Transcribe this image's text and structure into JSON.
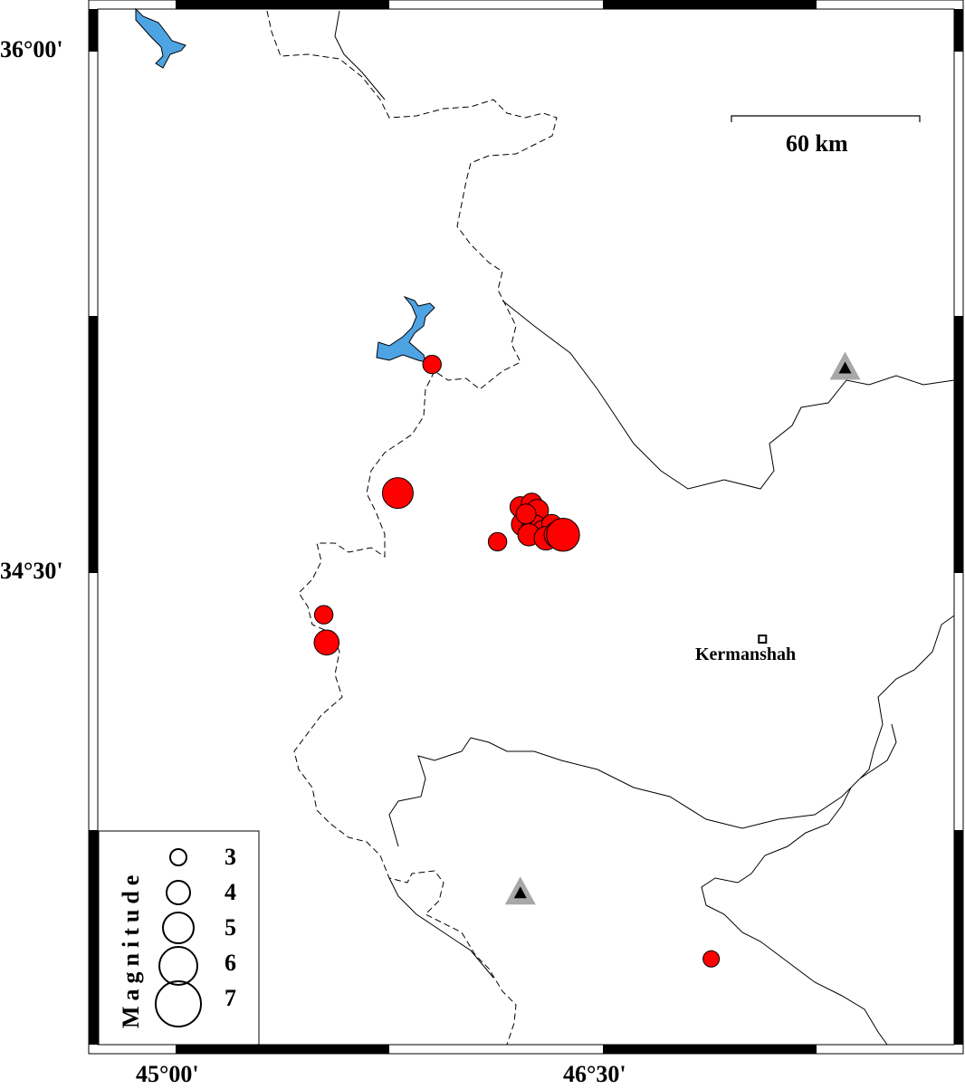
{
  "axes": {
    "lat_labels": [
      {
        "text": "36°00'",
        "lat": 36.0
      },
      {
        "text": "34°30'",
        "lat": 34.5
      }
    ],
    "lon_labels": [
      {
        "text": "45°00'",
        "lon": 45.0
      },
      {
        "text": "46°30'",
        "lon": 46.5
      }
    ]
  },
  "scale_bar": {
    "label": "60 km",
    "length_km": 60
  },
  "legend": {
    "title": "Magnitude",
    "entries": [
      {
        "mag": 3,
        "label": "3"
      },
      {
        "mag": 4,
        "label": "4"
      },
      {
        "mag": 5,
        "label": "5"
      },
      {
        "mag": 6,
        "label": "6"
      },
      {
        "mag": 7,
        "label": "7"
      }
    ]
  },
  "cities": [
    {
      "name": "Kermanshah",
      "lon": 47.06,
      "lat": 34.31
    }
  ],
  "stations": [
    {
      "lon": 47.35,
      "lat": 35.09
    },
    {
      "lon": 46.21,
      "lat": 33.58
    }
  ],
  "colors": {
    "event": "#ff0000",
    "water": "#4ea3e3",
    "station": "#a8a8a8"
  },
  "events": [
    {
      "lon": 45.9,
      "lat": 35.1,
      "mag": 3.3
    },
    {
      "lon": 45.78,
      "lat": 34.73,
      "mag": 5.0
    },
    {
      "lon": 45.52,
      "lat": 34.38,
      "mag": 3.3
    },
    {
      "lon": 45.53,
      "lat": 34.3,
      "mag": 4.2
    },
    {
      "lon": 46.13,
      "lat": 34.59,
      "mag": 3.3
    },
    {
      "lon": 46.88,
      "lat": 33.39,
      "mag": 3.0
    },
    {
      "lon": 46.21,
      "lat": 34.69,
      "mag": 3.6
    },
    {
      "lon": 46.25,
      "lat": 34.7,
      "mag": 3.6
    },
    {
      "lon": 46.27,
      "lat": 34.68,
      "mag": 3.8
    },
    {
      "lon": 46.22,
      "lat": 34.64,
      "mag": 4.0
    },
    {
      "lon": 46.26,
      "lat": 34.63,
      "mag": 4.3
    },
    {
      "lon": 46.29,
      "lat": 34.62,
      "mag": 3.8
    },
    {
      "lon": 46.32,
      "lat": 34.64,
      "mag": 3.5
    },
    {
      "lon": 46.24,
      "lat": 34.61,
      "mag": 3.8
    },
    {
      "lon": 46.3,
      "lat": 34.6,
      "mag": 4.0
    },
    {
      "lon": 46.34,
      "lat": 34.61,
      "mag": 4.4
    },
    {
      "lon": 46.23,
      "lat": 34.67,
      "mag": 3.5
    },
    {
      "lon": 46.36,
      "lat": 34.61,
      "mag": 5.3
    }
  ]
}
